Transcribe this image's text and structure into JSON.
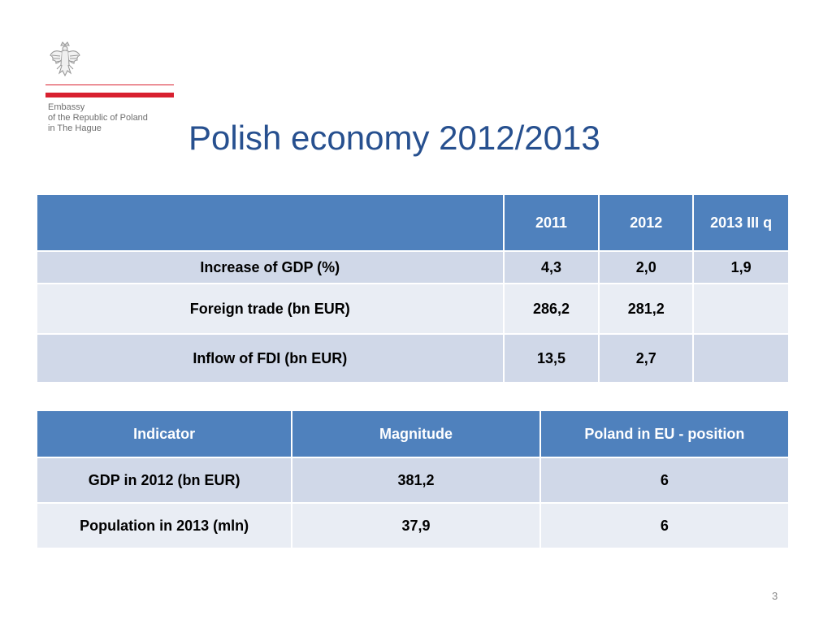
{
  "logo": {
    "icon": "polish-eagle-emblem",
    "lines": [
      "Embassy",
      "of the Republic of Poland",
      "in The Hague"
    ],
    "accent_color": "#d8202f"
  },
  "title": "Polish economy 2012/2013",
  "table1": {
    "headers": [
      "",
      "2011",
      "2012",
      "2013 III q"
    ],
    "rows": [
      [
        "Increase of GDP (%)",
        "4,3",
        "2,0",
        "1,9"
      ],
      [
        "Foreign trade (bn EUR)",
        "286,2",
        "281,2",
        ""
      ],
      [
        "Inflow of FDI (bn EUR)",
        "13,5",
        "2,7",
        ""
      ]
    ]
  },
  "table2": {
    "headers": [
      "Indicator",
      "Magnitude",
      "Poland in EU - position"
    ],
    "rows": [
      [
        "GDP in 2012 (bn EUR)",
        "381,2",
        "6"
      ],
      [
        "Population in 2013 (mln)",
        "37,9",
        "6"
      ]
    ]
  },
  "page_number": "3",
  "colors": {
    "header_fill": "#4f81bd",
    "row_odd": "#d0d8e8",
    "row_even": "#e9edf4",
    "title_color": "#27508f"
  }
}
